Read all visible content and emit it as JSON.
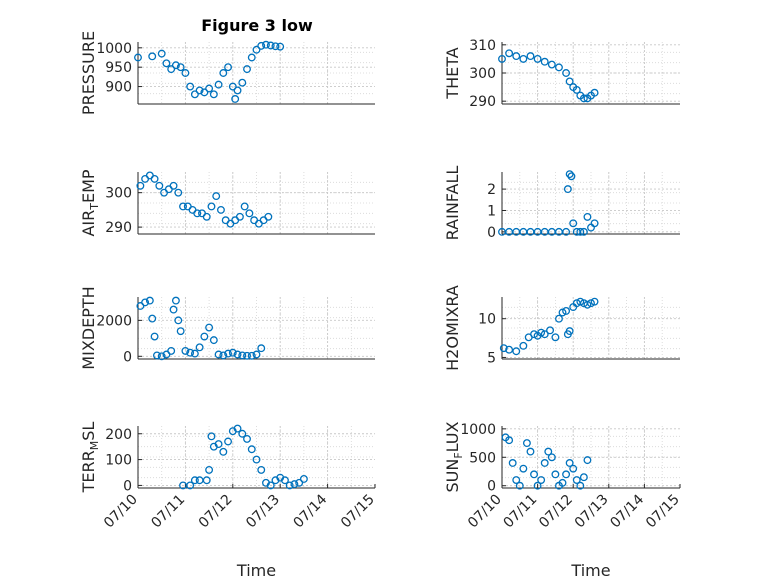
{
  "figure": {
    "title": "Figure 3 low"
  },
  "colors": {
    "marker": "#0072BD",
    "grid": "#b0b0b0",
    "axis": "#262626"
  },
  "chart_data": [
    {
      "type": "scatter",
      "panel": "pressure",
      "ylabel": "PRESSURE",
      "xlabel": "",
      "xlim": [
        0,
        5
      ],
      "ylim": [
        855,
        1015
      ],
      "yticks": [
        900,
        950,
        1000
      ],
      "ytick_labels": [
        "900",
        "950",
        "1000"
      ],
      "xticks": [],
      "xtick_labels": [],
      "grid": true,
      "points": [
        [
          0,
          975
        ],
        [
          0.3,
          978
        ],
        [
          0.5,
          985
        ],
        [
          0.6,
          960
        ],
        [
          0.7,
          945
        ],
        [
          0.8,
          955
        ],
        [
          0.9,
          950
        ],
        [
          1.0,
          935
        ],
        [
          1.1,
          900
        ],
        [
          1.2,
          880
        ],
        [
          1.3,
          890
        ],
        [
          1.4,
          885
        ],
        [
          1.5,
          895
        ],
        [
          1.6,
          880
        ],
        [
          1.7,
          905
        ],
        [
          1.8,
          935
        ],
        [
          1.9,
          950
        ],
        [
          2.0,
          900
        ],
        [
          2.05,
          868
        ],
        [
          2.1,
          890
        ],
        [
          2.2,
          910
        ],
        [
          2.3,
          945
        ],
        [
          2.4,
          975
        ],
        [
          2.5,
          995
        ],
        [
          2.6,
          1005
        ],
        [
          2.7,
          1008
        ],
        [
          2.8,
          1006
        ],
        [
          2.9,
          1004
        ],
        [
          3.0,
          1003
        ]
      ]
    },
    {
      "type": "scatter",
      "panel": "theta",
      "ylabel": "THETA",
      "xlabel": "",
      "xlim": [
        0,
        5
      ],
      "ylim": [
        289,
        311
      ],
      "yticks": [
        290,
        300,
        310
      ],
      "ytick_labels": [
        "290",
        "300",
        "310"
      ],
      "xticks": [],
      "xtick_labels": [],
      "grid": true,
      "points": [
        [
          0,
          305
        ],
        [
          0.2,
          307
        ],
        [
          0.4,
          306
        ],
        [
          0.6,
          305
        ],
        [
          0.8,
          306
        ],
        [
          1.0,
          305
        ],
        [
          1.2,
          304
        ],
        [
          1.4,
          303
        ],
        [
          1.6,
          302
        ],
        [
          1.8,
          300
        ],
        [
          1.9,
          297
        ],
        [
          2.0,
          295
        ],
        [
          2.1,
          294
        ],
        [
          2.2,
          292
        ],
        [
          2.3,
          291
        ],
        [
          2.4,
          291
        ],
        [
          2.5,
          292
        ],
        [
          2.6,
          293
        ]
      ]
    },
    {
      "type": "scatter",
      "panel": "air_temp",
      "ylabel": "AIR_TEMP",
      "xlabel": "",
      "xlim": [
        0,
        5
      ],
      "ylim": [
        288,
        306
      ],
      "yticks": [
        290,
        300
      ],
      "ytick_labels": [
        "290",
        "300"
      ],
      "xticks": [],
      "xtick_labels": [],
      "grid": true,
      "points": [
        [
          0.05,
          302
        ],
        [
          0.15,
          304
        ],
        [
          0.25,
          305
        ],
        [
          0.35,
          304
        ],
        [
          0.45,
          302
        ],
        [
          0.55,
          300
        ],
        [
          0.65,
          301
        ],
        [
          0.75,
          302
        ],
        [
          0.85,
          300
        ],
        [
          0.95,
          296
        ],
        [
          1.05,
          296
        ],
        [
          1.15,
          295
        ],
        [
          1.25,
          294
        ],
        [
          1.35,
          294
        ],
        [
          1.45,
          293
        ],
        [
          1.55,
          296
        ],
        [
          1.65,
          299
        ],
        [
          1.75,
          295
        ],
        [
          1.85,
          292
        ],
        [
          1.95,
          291
        ],
        [
          2.05,
          292
        ],
        [
          2.15,
          293
        ],
        [
          2.25,
          296
        ],
        [
          2.35,
          294
        ],
        [
          2.45,
          292
        ],
        [
          2.55,
          291
        ],
        [
          2.65,
          292
        ],
        [
          2.75,
          293
        ]
      ]
    },
    {
      "type": "scatter",
      "panel": "rainfall",
      "ylabel": "RAINFALL",
      "xlabel": "",
      "xlim": [
        0,
        5
      ],
      "ylim": [
        -0.1,
        2.8
      ],
      "yticks": [
        0,
        1,
        2
      ],
      "ytick_labels": [
        "0",
        "1",
        "2"
      ],
      "xticks": [],
      "xtick_labels": [],
      "grid": true,
      "points": [
        [
          0,
          0
        ],
        [
          0.2,
          0
        ],
        [
          0.4,
          0
        ],
        [
          0.6,
          0
        ],
        [
          0.8,
          0
        ],
        [
          1.0,
          0
        ],
        [
          1.2,
          0
        ],
        [
          1.4,
          0
        ],
        [
          1.6,
          0
        ],
        [
          1.8,
          0
        ],
        [
          1.85,
          2.0
        ],
        [
          1.9,
          2.7
        ],
        [
          1.95,
          2.6
        ],
        [
          2.0,
          0.4
        ],
        [
          2.1,
          0
        ],
        [
          2.2,
          0
        ],
        [
          2.3,
          0
        ],
        [
          2.4,
          0.7
        ],
        [
          2.5,
          0.2
        ],
        [
          2.6,
          0.4
        ]
      ]
    },
    {
      "type": "scatter",
      "panel": "mixdepth",
      "ylabel": "MIXDEPTH",
      "xlabel": "",
      "xlim": [
        0,
        5
      ],
      "ylim": [
        -150,
        3300
      ],
      "yticks": [
        0,
        2000
      ],
      "ytick_labels": [
        "0",
        "2000"
      ],
      "xticks": [],
      "xtick_labels": [],
      "grid": true,
      "points": [
        [
          0.05,
          2800
        ],
        [
          0.15,
          3000
        ],
        [
          0.25,
          3100
        ],
        [
          0.3,
          2100
        ],
        [
          0.35,
          1100
        ],
        [
          0.4,
          50
        ],
        [
          0.5,
          0
        ],
        [
          0.6,
          100
        ],
        [
          0.7,
          300
        ],
        [
          0.75,
          2600
        ],
        [
          0.8,
          3100
        ],
        [
          0.85,
          2000
        ],
        [
          0.9,
          1400
        ],
        [
          1.0,
          300
        ],
        [
          1.1,
          200
        ],
        [
          1.2,
          150
        ],
        [
          1.3,
          500
        ],
        [
          1.4,
          1100
        ],
        [
          1.5,
          1600
        ],
        [
          1.6,
          900
        ],
        [
          1.7,
          100
        ],
        [
          1.8,
          50
        ],
        [
          1.9,
          150
        ],
        [
          2.0,
          200
        ],
        [
          2.1,
          100
        ],
        [
          2.2,
          50
        ],
        [
          2.3,
          30
        ],
        [
          2.4,
          30
        ],
        [
          2.5,
          100
        ],
        [
          2.6,
          450
        ]
      ]
    },
    {
      "type": "scatter",
      "panel": "h2omixra",
      "ylabel": "H2OMIXRA",
      "xlabel": "",
      "xlim": [
        0,
        5
      ],
      "ylim": [
        4.8,
        12.8
      ],
      "yticks": [
        5,
        10
      ],
      "ytick_labels": [
        "5",
        "10"
      ],
      "xticks": [],
      "xtick_labels": [],
      "grid": true,
      "points": [
        [
          0.05,
          6.2
        ],
        [
          0.2,
          6
        ],
        [
          0.4,
          5.8
        ],
        [
          0.6,
          6.5
        ],
        [
          0.75,
          7.6
        ],
        [
          0.9,
          8
        ],
        [
          1.0,
          7.8
        ],
        [
          1.1,
          8.2
        ],
        [
          1.2,
          8
        ],
        [
          1.35,
          8.5
        ],
        [
          1.5,
          7.6
        ],
        [
          1.6,
          10
        ],
        [
          1.7,
          10.8
        ],
        [
          1.8,
          11
        ],
        [
          1.85,
          8
        ],
        [
          1.9,
          8.4
        ],
        [
          2.0,
          11.5
        ],
        [
          2.1,
          12
        ],
        [
          2.2,
          12.2
        ],
        [
          2.3,
          12
        ],
        [
          2.4,
          11.8
        ],
        [
          2.5,
          12
        ],
        [
          2.6,
          12.2
        ]
      ]
    },
    {
      "type": "scatter",
      "panel": "terr_msl",
      "ylabel": "TERR_MSL",
      "xlabel": "Time",
      "xlim": [
        0,
        5
      ],
      "ylim": [
        -10,
        230
      ],
      "yticks": [
        0,
        100,
        200
      ],
      "ytick_labels": [
        "0",
        "100",
        "200"
      ],
      "xticks": [
        0,
        1,
        2,
        3,
        4,
        5
      ],
      "xtick_labels": [
        "07/10",
        "07/11",
        "07/12",
        "07/13",
        "07/14",
        "07/15"
      ],
      "grid": true,
      "points": [
        [
          0.95,
          0
        ],
        [
          1.1,
          0
        ],
        [
          1.2,
          20
        ],
        [
          1.3,
          20
        ],
        [
          1.45,
          20
        ],
        [
          1.5,
          60
        ],
        [
          1.55,
          190
        ],
        [
          1.6,
          150
        ],
        [
          1.7,
          160
        ],
        [
          1.8,
          130
        ],
        [
          1.9,
          170
        ],
        [
          2.0,
          210
        ],
        [
          2.1,
          220
        ],
        [
          2.2,
          200
        ],
        [
          2.3,
          180
        ],
        [
          2.4,
          140
        ],
        [
          2.5,
          100
        ],
        [
          2.6,
          60
        ],
        [
          2.7,
          10
        ],
        [
          2.8,
          0
        ],
        [
          2.9,
          20
        ],
        [
          3.0,
          30
        ],
        [
          3.1,
          20
        ],
        [
          3.2,
          0
        ],
        [
          3.3,
          5
        ],
        [
          3.4,
          10
        ],
        [
          3.5,
          25
        ]
      ]
    },
    {
      "type": "scatter",
      "panel": "sun_flux",
      "ylabel": "SUN_FLUX",
      "xlabel": "Time",
      "xlim": [
        0,
        5
      ],
      "ylim": [
        -40,
        1050
      ],
      "yticks": [
        0,
        500,
        1000
      ],
      "ytick_labels": [
        "0",
        "500",
        "1000"
      ],
      "xticks": [
        0,
        1,
        2,
        3,
        4,
        5
      ],
      "xtick_labels": [
        "07/10",
        "07/11",
        "07/12",
        "07/13",
        "07/14",
        "07/15"
      ],
      "grid": true,
      "points": [
        [
          0.1,
          850
        ],
        [
          0.2,
          800
        ],
        [
          0.3,
          400
        ],
        [
          0.4,
          100
        ],
        [
          0.5,
          0
        ],
        [
          0.6,
          300
        ],
        [
          0.7,
          750
        ],
        [
          0.8,
          600
        ],
        [
          0.9,
          200
        ],
        [
          1.0,
          0
        ],
        [
          1.1,
          100
        ],
        [
          1.2,
          400
        ],
        [
          1.3,
          600
        ],
        [
          1.4,
          500
        ],
        [
          1.5,
          200
        ],
        [
          1.6,
          0
        ],
        [
          1.7,
          50
        ],
        [
          1.8,
          200
        ],
        [
          1.9,
          400
        ],
        [
          2.0,
          300
        ],
        [
          2.1,
          100
        ],
        [
          2.2,
          0
        ],
        [
          2.3,
          150
        ],
        [
          2.4,
          450
        ]
      ]
    }
  ]
}
